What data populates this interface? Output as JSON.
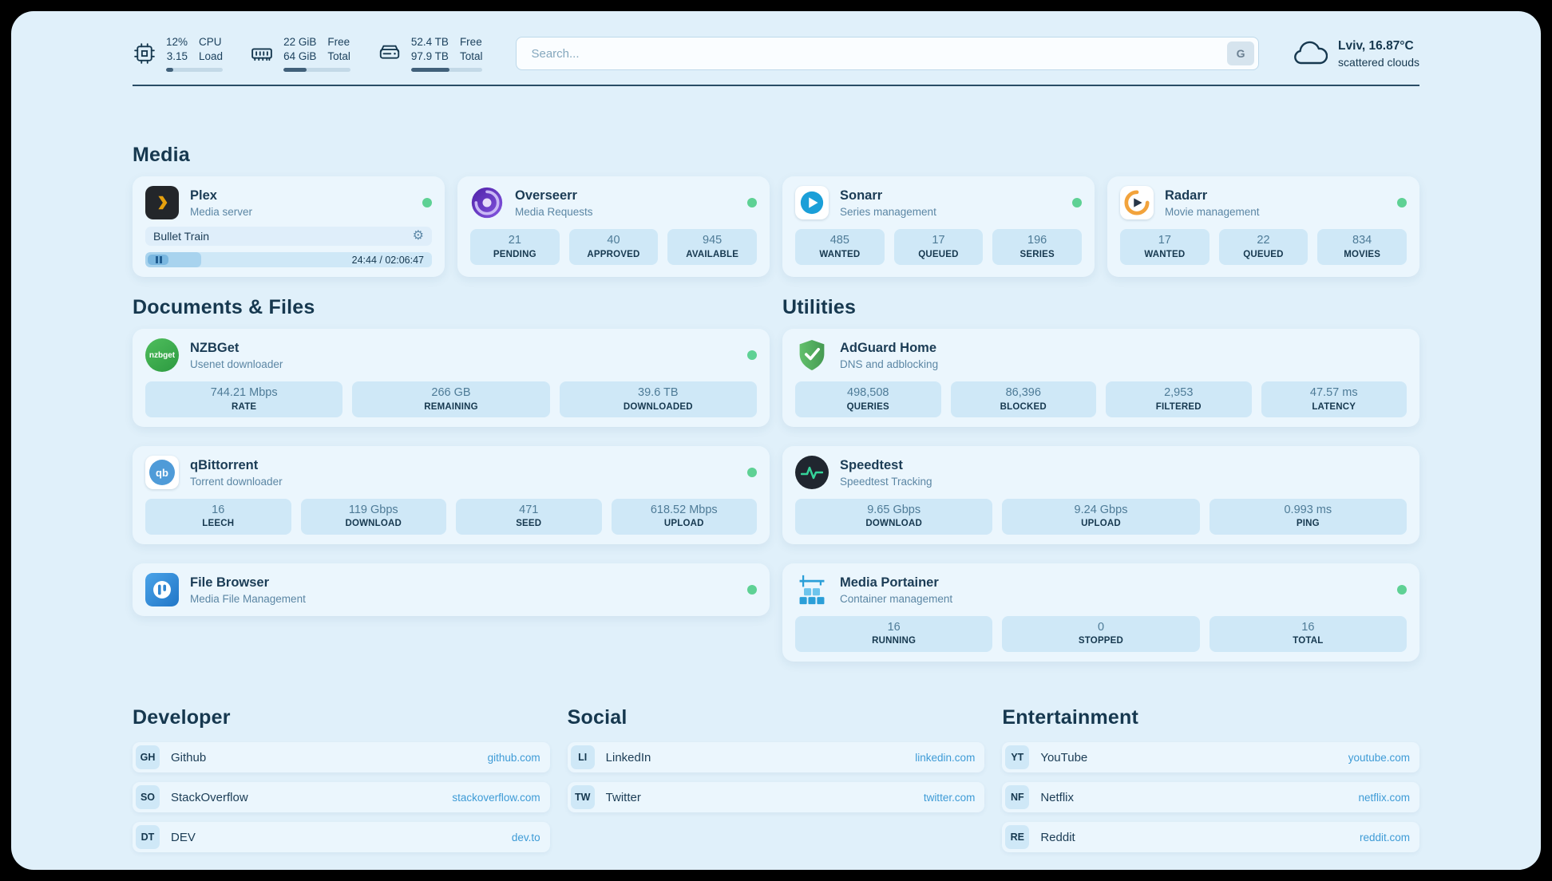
{
  "colors": {
    "page_background": "#e0f0fa",
    "card_background": "#ebf6fd",
    "stat_background": "#cfe8f7",
    "accent_link": "#3e9bd6",
    "status_online": "#5ed194",
    "text_primary": "#16384f"
  },
  "icons": {
    "gear": "⚙"
  },
  "topbar": {
    "cpu": {
      "value_top": "12%",
      "value_bottom": "3.15",
      "label_top": "CPU",
      "label_bottom": "Load",
      "progress_pct": 12
    },
    "memory": {
      "value_top": "22 GiB",
      "value_bottom": "64 GiB",
      "label_top": "Free",
      "label_bottom": "Total",
      "progress_pct": 34
    },
    "storage": {
      "value_top": "52.4 TB",
      "value_bottom": "97.9 TB",
      "label_top": "Free",
      "label_bottom": "Total",
      "progress_pct": 54
    },
    "search": {
      "placeholder": "Search...",
      "engine_button": "G"
    },
    "weather": {
      "location": "Lviv, 16.87°C",
      "condition": "scattered clouds"
    }
  },
  "media": {
    "title": "Media",
    "plex": {
      "name": "Plex",
      "subtitle": "Media server",
      "now_playing": "Bullet Train",
      "time": "24:44 / 02:06:47",
      "progress_pct": 19.5
    },
    "overseerr": {
      "name": "Overseerr",
      "subtitle": "Media Requests",
      "stats": [
        {
          "value": "21",
          "label": "PENDING"
        },
        {
          "value": "40",
          "label": "APPROVED"
        },
        {
          "value": "945",
          "label": "AVAILABLE"
        }
      ]
    },
    "sonarr": {
      "name": "Sonarr",
      "subtitle": "Series management",
      "stats": [
        {
          "value": "485",
          "label": "WANTED"
        },
        {
          "value": "17",
          "label": "QUEUED"
        },
        {
          "value": "196",
          "label": "SERIES"
        }
      ]
    },
    "radarr": {
      "name": "Radarr",
      "subtitle": "Movie management",
      "stats": [
        {
          "value": "17",
          "label": "WANTED"
        },
        {
          "value": "22",
          "label": "QUEUED"
        },
        {
          "value": "834",
          "label": "MOVIES"
        }
      ]
    }
  },
  "documents": {
    "title": "Documents & Files",
    "nzbget": {
      "name": "NZBGet",
      "subtitle": "Usenet downloader",
      "icon_text": "nzbget",
      "stats": [
        {
          "value": "744.21 Mbps",
          "label": "RATE"
        },
        {
          "value": "266 GB",
          "label": "REMAINING"
        },
        {
          "value": "39.6 TB",
          "label": "DOWNLOADED"
        }
      ]
    },
    "qbittorrent": {
      "name": "qBittorrent",
      "subtitle": "Torrent downloader",
      "icon_text": "qb",
      "stats": [
        {
          "value": "16",
          "label": "LEECH"
        },
        {
          "value": "119 Gbps",
          "label": "DOWNLOAD"
        },
        {
          "value": "471",
          "label": "SEED"
        },
        {
          "value": "618.52 Mbps",
          "label": "UPLOAD"
        }
      ]
    },
    "filebrowser": {
      "name": "File Browser",
      "subtitle": "Media File Management"
    }
  },
  "utilities": {
    "title": "Utilities",
    "adguard": {
      "name": "AdGuard Home",
      "subtitle": "DNS and adblocking",
      "stats": [
        {
          "value": "498,508",
          "label": "QUERIES"
        },
        {
          "value": "86,396",
          "label": "BLOCKED"
        },
        {
          "value": "2,953",
          "label": "FILTERED"
        },
        {
          "value": "47.57 ms",
          "label": "LATENCY"
        }
      ]
    },
    "speedtest": {
      "name": "Speedtest",
      "subtitle": "Speedtest Tracking",
      "stats": [
        {
          "value": "9.65 Gbps",
          "label": "DOWNLOAD"
        },
        {
          "value": "9.24 Gbps",
          "label": "UPLOAD"
        },
        {
          "value": "0.993 ms",
          "label": "PING"
        }
      ]
    },
    "portainer": {
      "name": "Media Portainer",
      "subtitle": "Container management",
      "stats": [
        {
          "value": "16",
          "label": "RUNNING"
        },
        {
          "value": "0",
          "label": "STOPPED"
        },
        {
          "value": "16",
          "label": "TOTAL"
        }
      ]
    }
  },
  "bookmarks": {
    "developer": {
      "title": "Developer",
      "items": [
        {
          "abbr": "GH",
          "name": "Github",
          "url": "github.com"
        },
        {
          "abbr": "SO",
          "name": "StackOverflow",
          "url": "stackoverflow.com"
        },
        {
          "abbr": "DT",
          "name": "DEV",
          "url": "dev.to"
        }
      ]
    },
    "social": {
      "title": "Social",
      "items": [
        {
          "abbr": "LI",
          "name": "LinkedIn",
          "url": "linkedin.com"
        },
        {
          "abbr": "TW",
          "name": "Twitter",
          "url": "twitter.com"
        }
      ]
    },
    "entertainment": {
      "title": "Entertainment",
      "items": [
        {
          "abbr": "YT",
          "name": "YouTube",
          "url": "youtube.com"
        },
        {
          "abbr": "NF",
          "name": "Netflix",
          "url": "netflix.com"
        },
        {
          "abbr": "RE",
          "name": "Reddit",
          "url": "reddit.com"
        }
      ]
    }
  }
}
